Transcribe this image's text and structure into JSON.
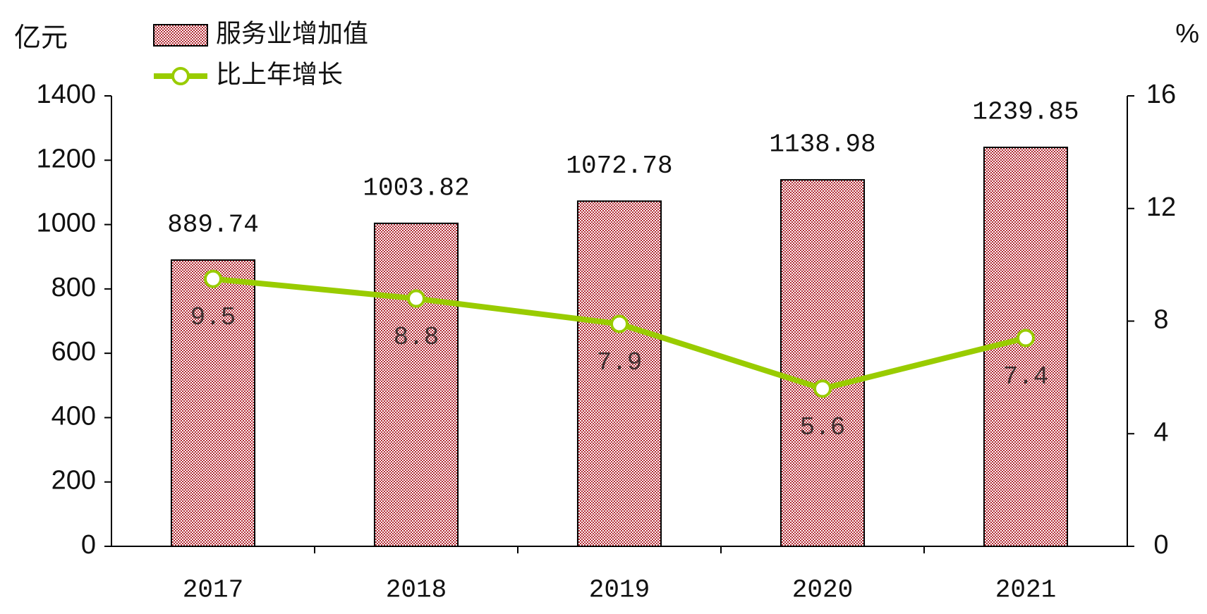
{
  "chart_data": {
    "type": "bar_line",
    "y_label": "亿元",
    "y2_label": "%",
    "categories": [
      "2017",
      "2018",
      "2019",
      "2020",
      "2021"
    ],
    "series": [
      {
        "name": "服务业增加值",
        "type": "bar",
        "color": "#b22a33",
        "values": [
          889.74,
          1003.82,
          1072.78,
          1138.98,
          1239.85
        ]
      },
      {
        "name": "比上年增长",
        "type": "line",
        "axis": "y2",
        "color": "#99cc00",
        "values": [
          9.5,
          8.8,
          7.9,
          5.6,
          7.4
        ]
      }
    ],
    "ylim": [
      0,
      1400
    ],
    "yticks": [
      0,
      200,
      400,
      600,
      800,
      1000,
      1200,
      1400
    ],
    "y2lim": [
      0,
      16
    ],
    "y2ticks": [
      0,
      4,
      8,
      12,
      16
    ],
    "legend": "top-left",
    "grid": false
  }
}
